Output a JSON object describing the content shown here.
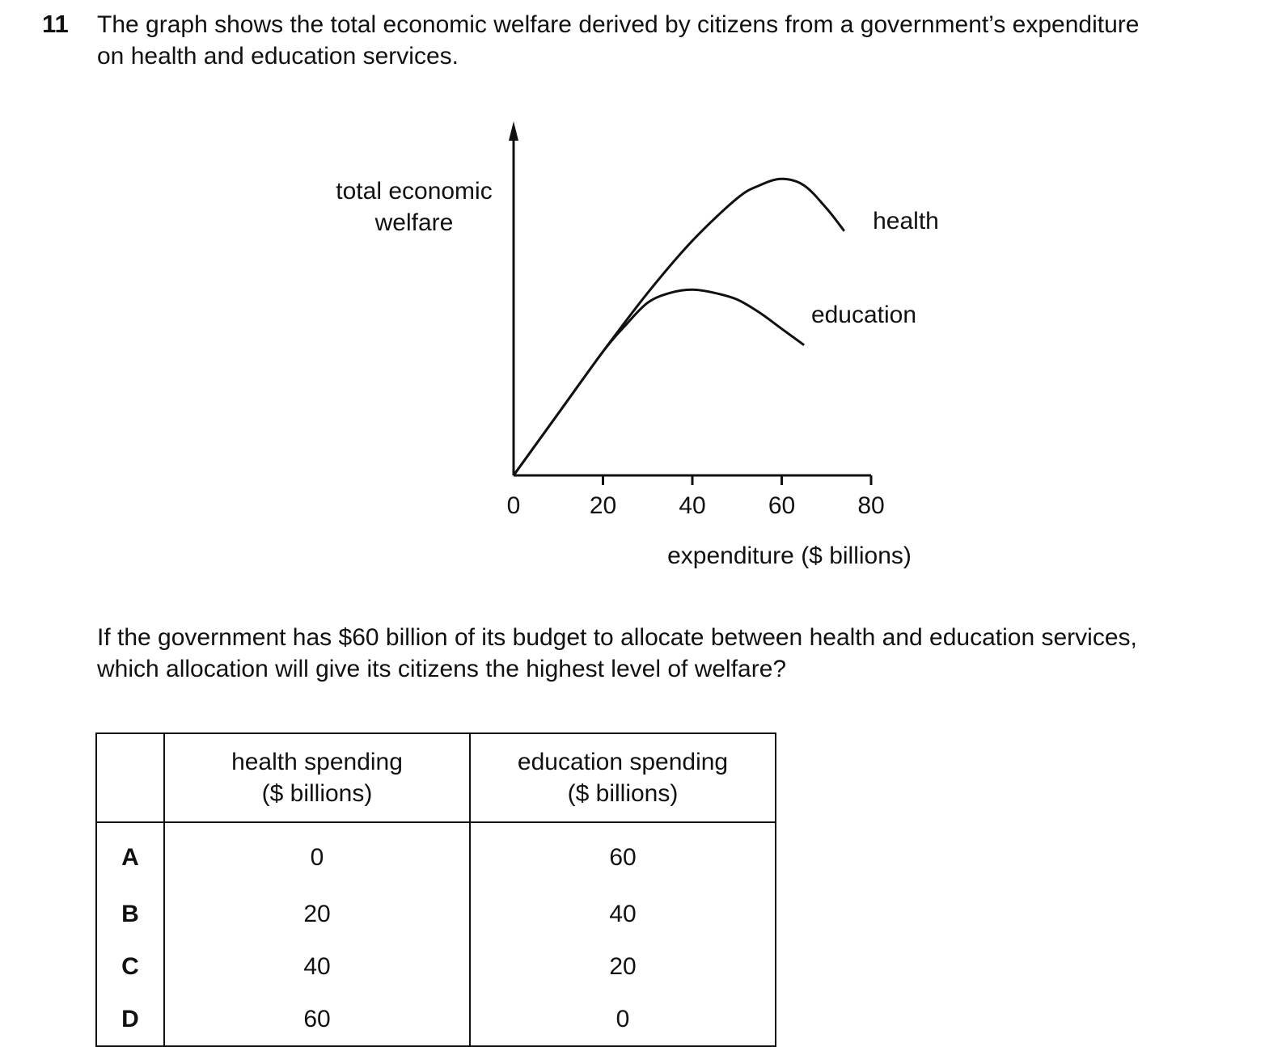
{
  "question": {
    "number": "11",
    "stem_line1": "The graph shows the total economic welfare derived by citizens from a government’s expenditure",
    "stem_line2": "on health and education services.",
    "prompt_line1": "If the government has $60 billion of its budget to allocate between health and education services,",
    "prompt_line2": "which allocation will give its citizens the highest level of welfare?"
  },
  "chart_data": {
    "type": "line",
    "ylabel_line1": "total economic",
    "ylabel_line2": "welfare",
    "xlabel": "expenditure ($ billions)",
    "x_ticks": [
      "0",
      "20",
      "40",
      "60",
      "80"
    ],
    "xlim": [
      0,
      80
    ],
    "ylim": [
      0,
      1
    ],
    "grid": false,
    "series": [
      {
        "name": "health",
        "x": [
          0,
          10,
          20,
          30,
          40,
          50,
          55,
          60,
          65,
          70,
          74
        ],
        "y": [
          0,
          0.19,
          0.38,
          0.56,
          0.72,
          0.85,
          0.89,
          0.91,
          0.89,
          0.82,
          0.75
        ]
      },
      {
        "name": "education",
        "x": [
          0,
          10,
          20,
          25,
          30,
          35,
          40,
          45,
          50,
          55,
          60,
          65
        ],
        "y": [
          0,
          0.19,
          0.38,
          0.46,
          0.53,
          0.56,
          0.57,
          0.56,
          0.54,
          0.5,
          0.45,
          0.4
        ]
      }
    ]
  },
  "table": {
    "headers": {
      "health_line1": "health spending",
      "health_line2": "($ billions)",
      "education_line1": "education spending",
      "education_line2": "($ billions)"
    },
    "rows": [
      {
        "letter": "A",
        "health": "0",
        "education": "60"
      },
      {
        "letter": "B",
        "health": "20",
        "education": "40"
      },
      {
        "letter": "C",
        "health": "40",
        "education": "20"
      },
      {
        "letter": "D",
        "health": "60",
        "education": "0"
      }
    ]
  }
}
